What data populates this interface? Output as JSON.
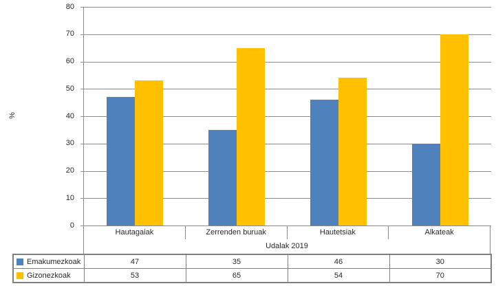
{
  "chart_data": {
    "type": "bar",
    "title": "",
    "categories": [
      "Hautagaiak",
      "Zerrenden buruak",
      "Hautetsiak",
      "Alkateak"
    ],
    "series": [
      {
        "name": "Emakumezkoak",
        "color": "#4F81BD",
        "values": [
          47,
          35,
          46,
          30
        ]
      },
      {
        "name": "Gizonezkoak",
        "color": "#FFC000",
        "values": [
          53,
          65,
          54,
          70
        ]
      }
    ],
    "xlabel": "Udalak 2019",
    "ylabel": "%",
    "ylim": [
      0,
      80
    ],
    "yticks": [
      0,
      10,
      20,
      30,
      40,
      50,
      60,
      70,
      80
    ],
    "grid": true,
    "legend_position": "data-table-left"
  },
  "colors": {
    "gridline": "#8a8a8a",
    "table_border": "#7f7f7f",
    "text": "#262626",
    "background": "#ffffff"
  }
}
